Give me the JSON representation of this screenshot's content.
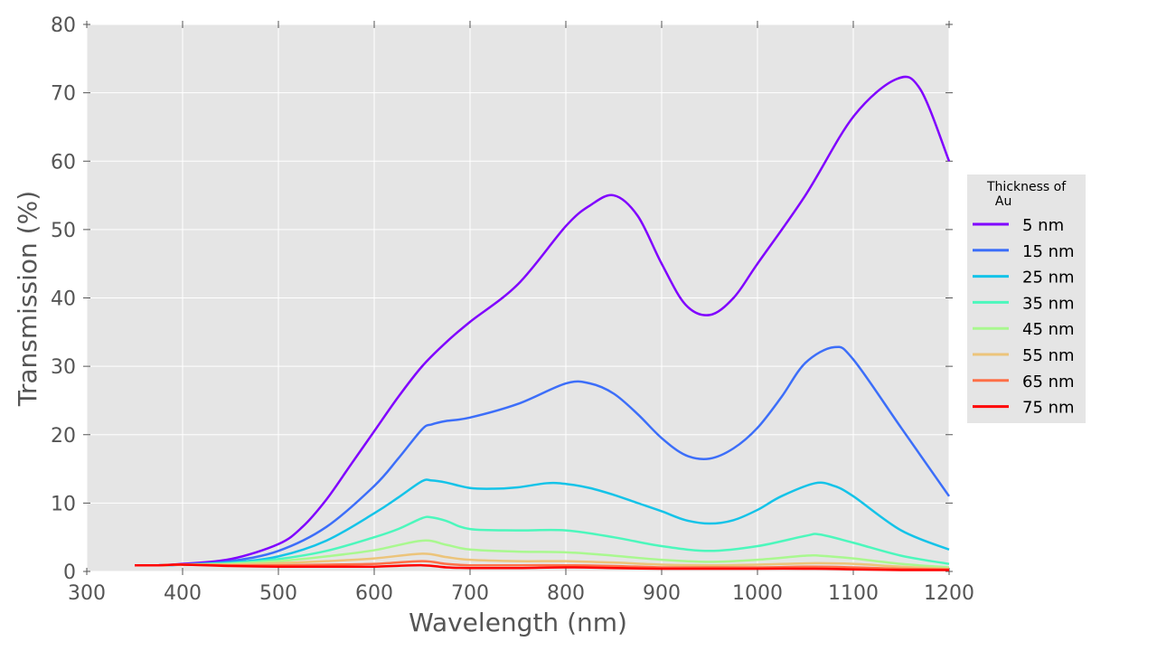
{
  "chart_data": {
    "type": "line",
    "title": "",
    "xlabel": "Wavelength (nm)",
    "ylabel": "Transmission (%)",
    "xlim": [
      300,
      1200
    ],
    "ylim": [
      0,
      80
    ],
    "x_ticks": [
      300,
      400,
      500,
      600,
      700,
      800,
      900,
      1000,
      1100,
      1200
    ],
    "x_tick_labels": [
      "300",
      "400",
      "500",
      "600",
      "700",
      "800",
      "900",
      "1000",
      "1100",
      "1200"
    ],
    "y_ticks": [
      0,
      10,
      20,
      30,
      40,
      50,
      60,
      70,
      80
    ],
    "y_tick_labels": [
      "0",
      "10",
      "20",
      "30",
      "40",
      "50",
      "60",
      "70",
      "80"
    ],
    "grid": true,
    "background": "#e5e5e5",
    "legend": {
      "title": "Thickness of\n  Au",
      "placement": "right"
    },
    "series": [
      {
        "name": "5 nm",
        "color": "#8000ff",
        "x": [
          350,
          375,
          400,
          450,
          500,
          525,
          550,
          575,
          600,
          625,
          650,
          675,
          700,
          750,
          800,
          825,
          850,
          875,
          900,
          925,
          950,
          975,
          1000,
          1050,
          1100,
          1145,
          1170,
          1200
        ],
        "y": [
          0.9,
          0.9,
          1.1,
          1.8,
          4,
          6.5,
          10.5,
          15.5,
          20.5,
          25.5,
          30,
          33.5,
          36.5,
          42,
          50.5,
          53.5,
          55,
          52,
          45,
          39,
          37.5,
          40,
          45,
          55,
          66.5,
          72,
          70.5,
          60
        ]
      },
      {
        "name": "15 nm",
        "color": "#3c6ef9",
        "x": [
          350,
          375,
          400,
          450,
          500,
          550,
          600,
          625,
          650,
          660,
          675,
          700,
          750,
          800,
          825,
          850,
          875,
          900,
          925,
          950,
          975,
          1000,
          1025,
          1050,
          1080,
          1100,
          1150,
          1200
        ],
        "y": [
          0.9,
          0.9,
          1,
          1.5,
          3,
          6.5,
          12.5,
          16.5,
          20.8,
          21.5,
          22,
          22.5,
          24.5,
          27.5,
          27.5,
          26,
          23,
          19.5,
          17,
          16.5,
          18,
          21,
          25.5,
          30.5,
          32.8,
          31,
          21,
          11
        ]
      },
      {
        "name": "25 nm",
        "color": "#14c3e8",
        "x": [
          350,
          375,
          400,
          450,
          500,
          550,
          600,
          625,
          650,
          660,
          675,
          700,
          725,
          750,
          780,
          800,
          825,
          850,
          875,
          900,
          925,
          950,
          975,
          1000,
          1025,
          1060,
          1080,
          1100,
          1150,
          1200
        ],
        "y": [
          0.9,
          0.9,
          1,
          1.3,
          2.2,
          4.5,
          8.5,
          10.8,
          13.2,
          13.3,
          13,
          12.2,
          12.1,
          12.3,
          12.9,
          12.8,
          12.2,
          11.2,
          10,
          8.8,
          7.5,
          7,
          7.5,
          9,
          11,
          12.9,
          12.5,
          11,
          6,
          3.2
        ]
      },
      {
        "name": "35 nm",
        "color": "#4cf7bc",
        "x": [
          350,
          375,
          400,
          450,
          500,
          550,
          600,
          625,
          650,
          660,
          675,
          700,
          750,
          800,
          850,
          900,
          950,
          1000,
          1050,
          1065,
          1100,
          1150,
          1200
        ],
        "y": [
          0.9,
          0.9,
          1,
          1.2,
          1.8,
          3,
          5,
          6.2,
          7.8,
          7.9,
          7.4,
          6.2,
          6,
          6,
          5,
          3.7,
          3,
          3.7,
          5.2,
          5.4,
          4.2,
          2.3,
          1.1
        ]
      },
      {
        "name": "45 nm",
        "color": "#a9f88f",
        "x": [
          350,
          375,
          400,
          450,
          500,
          550,
          600,
          650,
          675,
          700,
          750,
          800,
          850,
          900,
          950,
          1000,
          1050,
          1065,
          1100,
          1150,
          1200
        ],
        "y": [
          0.9,
          0.9,
          1,
          1.1,
          1.5,
          2.2,
          3.1,
          4.5,
          3.9,
          3.2,
          2.9,
          2.8,
          2.3,
          1.7,
          1.4,
          1.7,
          2.3,
          2.3,
          1.9,
          1.1,
          0.6
        ]
      },
      {
        "name": "55 nm",
        "color": "#ecc47a",
        "x": [
          350,
          375,
          400,
          450,
          500,
          550,
          600,
          650,
          675,
          700,
          750,
          800,
          850,
          900,
          950,
          1000,
          1060,
          1100,
          1150,
          1200
        ],
        "y": [
          0.9,
          0.9,
          1,
          1,
          1.2,
          1.5,
          1.9,
          2.6,
          2.1,
          1.7,
          1.5,
          1.5,
          1.3,
          1,
          0.9,
          1,
          1.2,
          1.1,
          0.7,
          0.4
        ]
      },
      {
        "name": "65 nm",
        "color": "#ff6f47",
        "x": [
          350,
          375,
          400,
          450,
          500,
          550,
          600,
          650,
          675,
          700,
          750,
          800,
          850,
          900,
          950,
          1000,
          1060,
          1100,
          1150,
          1200
        ],
        "y": [
          0.9,
          0.9,
          1,
          0.9,
          0.9,
          1,
          1.1,
          1.5,
          1.1,
          0.9,
          0.9,
          0.9,
          0.8,
          0.6,
          0.6,
          0.6,
          0.7,
          0.6,
          0.4,
          0.3
        ]
      },
      {
        "name": "75 nm",
        "color": "#ff0000",
        "x": [
          350,
          375,
          400,
          450,
          500,
          550,
          600,
          650,
          675,
          700,
          750,
          800,
          850,
          900,
          950,
          1000,
          1060,
          1100,
          1150,
          1200
        ],
        "y": [
          0.9,
          0.9,
          1,
          0.8,
          0.7,
          0.7,
          0.7,
          0.9,
          0.6,
          0.5,
          0.5,
          0.6,
          0.5,
          0.4,
          0.4,
          0.4,
          0.4,
          0.3,
          0.2,
          0.2
        ]
      }
    ]
  }
}
